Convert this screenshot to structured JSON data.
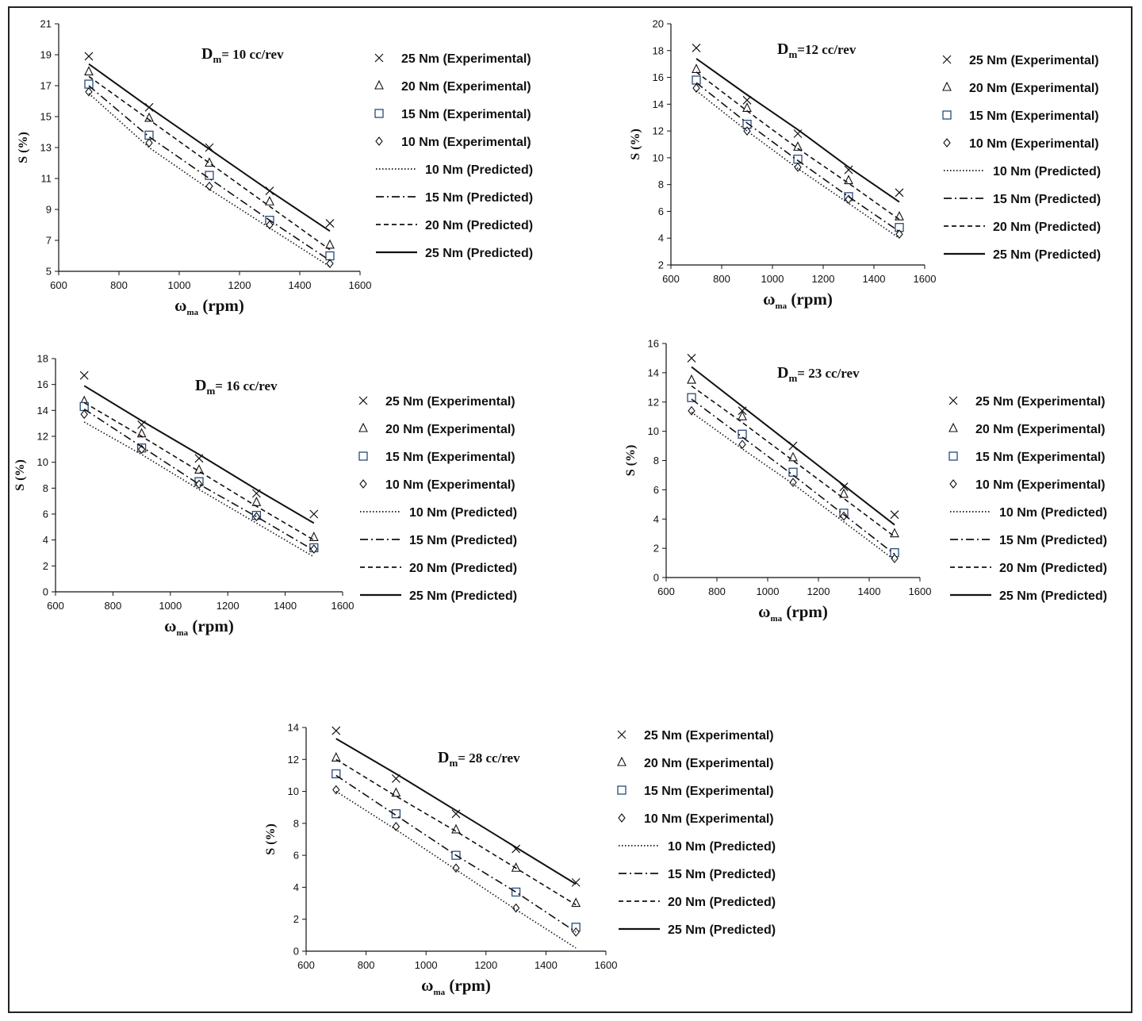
{
  "figure": {
    "x_unit": "(rpm)"
  },
  "chart_data": [
    {
      "type": "line",
      "title": "Dm= 10 cc/rev",
      "title_main": "D",
      "title_sub": "m",
      "title_rest": "= 10 cc/rev",
      "xlabel": "ωma (rpm)",
      "ylabel": "S (%)",
      "xlim": [
        600,
        1600
      ],
      "ylim": [
        5,
        21
      ],
      "xticks": [
        600,
        800,
        1000,
        1200,
        1400,
        1600
      ],
      "yticks": [
        5,
        7,
        9,
        11,
        13,
        15,
        17,
        19,
        21
      ],
      "x": [
        700,
        900,
        1100,
        1300,
        1500
      ],
      "series": [
        {
          "name": "25 Nm (Experimental)",
          "marker": "x",
          "values": [
            18.9,
            15.6,
            13.0,
            10.2,
            8.1
          ]
        },
        {
          "name": "20 Nm (Experimental)",
          "marker": "triangle",
          "values": [
            17.9,
            14.9,
            12.0,
            9.5,
            6.7
          ]
        },
        {
          "name": "15 Nm (Experimental)",
          "marker": "square",
          "values": [
            17.1,
            13.8,
            11.2,
            8.3,
            6.0
          ]
        },
        {
          "name": "10 Nm (Experimental)",
          "marker": "diamond",
          "values": [
            16.6,
            13.3,
            10.5,
            8.0,
            5.5
          ]
        },
        {
          "name": "10 Nm (Predicted)",
          "dash": "dot",
          "values": [
            16.5,
            13.0,
            10.3,
            7.8,
            5.3
          ]
        },
        {
          "name": "15 Nm (Predicted)",
          "dash": "dashdot",
          "values": [
            17.0,
            13.7,
            11.0,
            8.3,
            5.7
          ]
        },
        {
          "name": "20 Nm (Predicted)",
          "dash": "dash",
          "values": [
            17.6,
            14.8,
            12.0,
            9.2,
            6.4
          ]
        },
        {
          "name": "25 Nm (Predicted)",
          "dash": "solid",
          "values": [
            18.4,
            15.6,
            12.9,
            10.2,
            7.6
          ]
        }
      ]
    },
    {
      "type": "line",
      "title": "Dm=12 cc/rev",
      "title_main": "D",
      "title_sub": "m",
      "title_rest": "=12 cc/rev",
      "xlabel": "ωma (rpm)",
      "ylabel": "S (%)",
      "xlim": [
        600,
        1600
      ],
      "ylim": [
        2,
        20
      ],
      "xticks": [
        600,
        800,
        1000,
        1200,
        1400,
        1600
      ],
      "yticks": [
        2,
        4,
        6,
        8,
        10,
        12,
        14,
        16,
        18,
        20
      ],
      "x": [
        700,
        900,
        1100,
        1300,
        1500
      ],
      "series": [
        {
          "name": "25 Nm (Experimental)",
          "marker": "x",
          "values": [
            18.2,
            14.3,
            11.8,
            9.1,
            7.4
          ]
        },
        {
          "name": "20 Nm (Experimental)",
          "marker": "triangle",
          "values": [
            16.6,
            13.7,
            10.8,
            8.3,
            5.6
          ]
        },
        {
          "name": "15 Nm (Experimental)",
          "marker": "square",
          "values": [
            15.8,
            12.5,
            9.9,
            7.1,
            4.8
          ]
        },
        {
          "name": "10 Nm (Experimental)",
          "marker": "diamond",
          "values": [
            15.2,
            12.0,
            9.3,
            6.9,
            4.3
          ]
        },
        {
          "name": "10 Nm (Predicted)",
          "dash": "dot",
          "values": [
            15.0,
            12.0,
            9.2,
            6.6,
            4.0
          ]
        },
        {
          "name": "15 Nm (Predicted)",
          "dash": "dashdot",
          "values": [
            15.6,
            12.6,
            9.8,
            7.1,
            4.5
          ]
        },
        {
          "name": "20 Nm (Predicted)",
          "dash": "dash",
          "values": [
            16.4,
            13.5,
            10.7,
            8.1,
            5.4
          ]
        },
        {
          "name": "25 Nm (Predicted)",
          "dash": "solid",
          "values": [
            17.4,
            14.7,
            12.1,
            9.3,
            6.7
          ]
        }
      ]
    },
    {
      "type": "line",
      "title": "Dm= 16 cc/rev",
      "title_main": "D",
      "title_sub": "m",
      "title_rest": "= 16 cc/rev",
      "xlabel": "ωma (rpm)",
      "ylabel": "S (%)",
      "xlim": [
        600,
        1600
      ],
      "ylim": [
        0,
        18
      ],
      "xticks": [
        600,
        800,
        1000,
        1200,
        1400,
        1600
      ],
      "yticks": [
        0,
        2,
        4,
        6,
        8,
        10,
        12,
        14,
        16,
        18
      ],
      "x": [
        700,
        900,
        1100,
        1300,
        1500
      ],
      "series": [
        {
          "name": "25 Nm (Experimental)",
          "marker": "x",
          "values": [
            16.7,
            12.9,
            10.3,
            7.6,
            6.0
          ]
        },
        {
          "name": "20 Nm (Experimental)",
          "marker": "triangle",
          "values": [
            14.7,
            12.2,
            9.4,
            6.9,
            4.2
          ]
        },
        {
          "name": "15 Nm (Experimental)",
          "marker": "square",
          "values": [
            14.3,
            11.1,
            8.5,
            5.9,
            3.4
          ]
        },
        {
          "name": "10 Nm (Experimental)",
          "marker": "diamond",
          "values": [
            13.7,
            11.0,
            8.3,
            5.8,
            3.3
          ]
        },
        {
          "name": "10 Nm (Predicted)",
          "dash": "dot",
          "values": [
            13.1,
            10.6,
            7.9,
            5.3,
            2.7
          ]
        },
        {
          "name": "15 Nm (Predicted)",
          "dash": "dashdot",
          "values": [
            14.1,
            11.2,
            8.3,
            5.8,
            3.2
          ]
        },
        {
          "name": "20 Nm (Predicted)",
          "dash": "dash",
          "values": [
            14.6,
            12.0,
            9.3,
            6.6,
            4.0
          ]
        },
        {
          "name": "25 Nm (Predicted)",
          "dash": "solid",
          "values": [
            15.9,
            13.2,
            10.6,
            7.9,
            5.3
          ]
        }
      ]
    },
    {
      "type": "line",
      "title": "Dm= 23 cc/rev",
      "title_main": "D",
      "title_sub": "m",
      "title_rest": "= 23 cc/rev",
      "xlabel": "ωma (rpm)",
      "ylabel": "S (%)",
      "xlim": [
        600,
        1600
      ],
      "ylim": [
        0,
        16
      ],
      "xticks": [
        600,
        800,
        1000,
        1200,
        1400,
        1600
      ],
      "yticks": [
        0,
        2,
        4,
        6,
        8,
        10,
        12,
        14,
        16
      ],
      "x": [
        700,
        900,
        1100,
        1300,
        1500
      ],
      "series": [
        {
          "name": "25 Nm (Experimental)",
          "marker": "x",
          "values": [
            15.0,
            11.4,
            9.0,
            6.2,
            4.3
          ]
        },
        {
          "name": "20 Nm (Experimental)",
          "marker": "triangle",
          "values": [
            13.5,
            11.0,
            8.2,
            5.7,
            3.0
          ]
        },
        {
          "name": "15 Nm (Experimental)",
          "marker": "square",
          "values": [
            12.3,
            9.8,
            7.2,
            4.4,
            1.7
          ]
        },
        {
          "name": "10 Nm (Experimental)",
          "marker": "diamond",
          "values": [
            11.4,
            9.1,
            6.5,
            4.2,
            1.3
          ]
        },
        {
          "name": "10 Nm (Predicted)",
          "dash": "dot",
          "values": [
            11.3,
            8.8,
            6.4,
            3.8,
            1.2
          ]
        },
        {
          "name": "15 Nm (Predicted)",
          "dash": "dashdot",
          "values": [
            12.2,
            9.6,
            7.0,
            4.3,
            1.6
          ]
        },
        {
          "name": "20 Nm (Predicted)",
          "dash": "dash",
          "values": [
            13.1,
            10.6,
            8.0,
            5.4,
            2.8
          ]
        },
        {
          "name": "25 Nm (Predicted)",
          "dash": "solid",
          "values": [
            14.4,
            11.7,
            9.0,
            6.3,
            3.6
          ]
        }
      ]
    },
    {
      "type": "line",
      "title": "Dm= 28 cc/rev",
      "title_main": "D",
      "title_sub": "m",
      "title_rest": "= 28 cc/rev",
      "xlabel": "ωma (rpm)",
      "ylabel": "S (%)",
      "xlim": [
        600,
        1600
      ],
      "ylim": [
        0,
        14
      ],
      "xticks": [
        600,
        800,
        1000,
        1200,
        1400,
        1600
      ],
      "yticks": [
        0,
        2,
        4,
        6,
        8,
        10,
        12,
        14
      ],
      "x": [
        700,
        900,
        1100,
        1300,
        1500
      ],
      "series": [
        {
          "name": "25 Nm (Experimental)",
          "marker": "x",
          "values": [
            13.8,
            10.8,
            8.6,
            6.4,
            4.3
          ]
        },
        {
          "name": "20 Nm (Experimental)",
          "marker": "triangle",
          "values": [
            12.1,
            9.9,
            7.6,
            5.2,
            3.0
          ]
        },
        {
          "name": "15 Nm (Experimental)",
          "marker": "square",
          "values": [
            11.1,
            8.6,
            6.0,
            3.7,
            1.5
          ]
        },
        {
          "name": "10 Nm (Experimental)",
          "marker": "diamond",
          "values": [
            10.1,
            7.8,
            5.2,
            2.7,
            1.2
          ]
        },
        {
          "name": "10 Nm (Predicted)",
          "dash": "dot",
          "values": [
            10.0,
            7.6,
            5.1,
            2.6,
            0.2
          ]
        },
        {
          "name": "15 Nm (Predicted)",
          "dash": "dashdot",
          "values": [
            11.0,
            8.5,
            6.0,
            3.7,
            1.2
          ]
        },
        {
          "name": "20 Nm (Predicted)",
          "dash": "dash",
          "values": [
            12.0,
            9.7,
            7.5,
            5.2,
            2.9
          ]
        },
        {
          "name": "25 Nm (Predicted)",
          "dash": "solid",
          "values": [
            13.3,
            11.1,
            8.8,
            6.5,
            4.2
          ]
        }
      ]
    }
  ]
}
